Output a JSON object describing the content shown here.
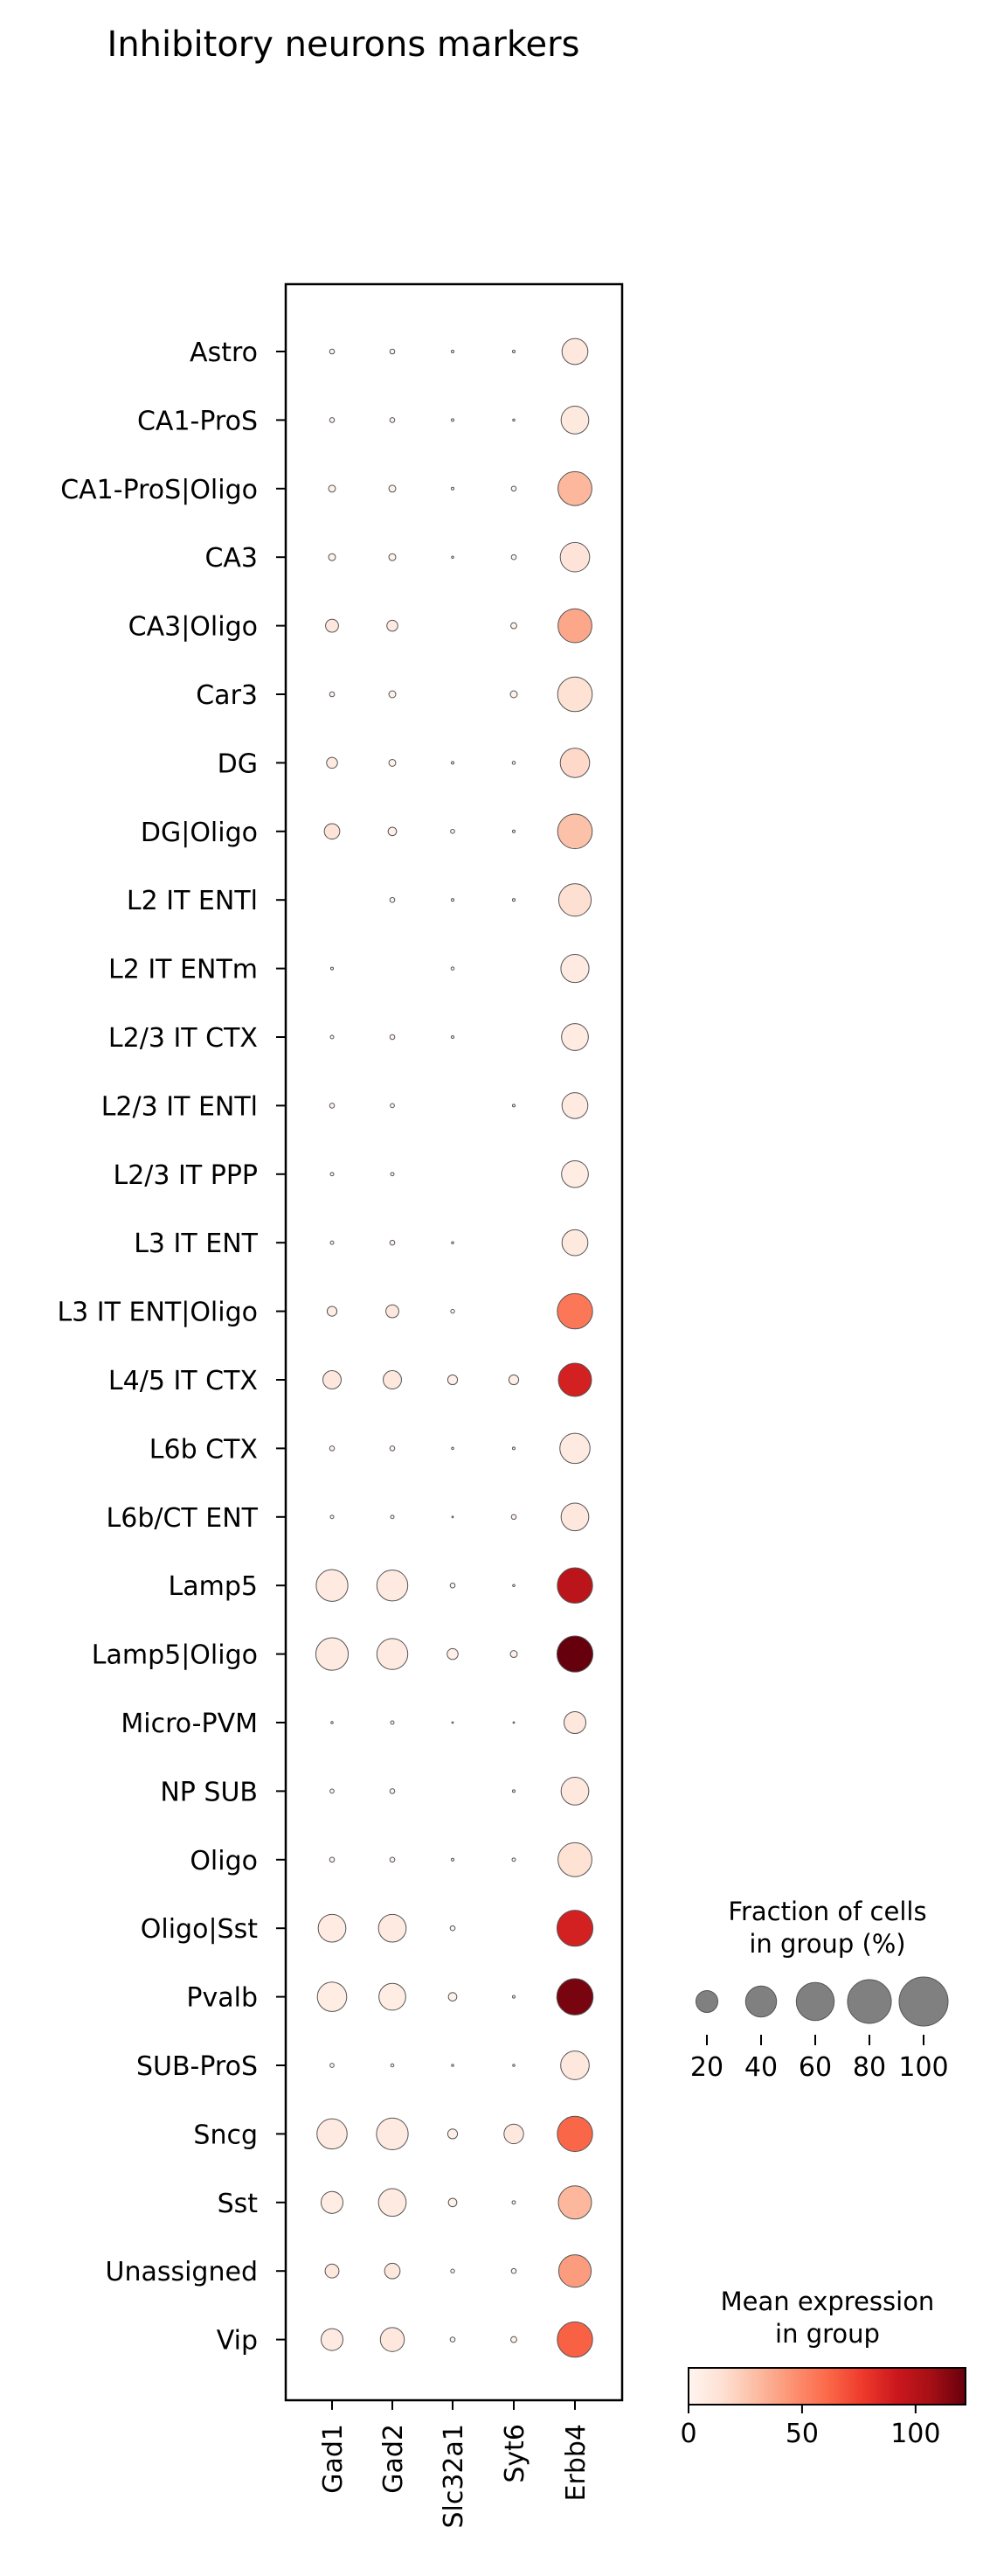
{
  "chart_data": {
    "type": "dotplot",
    "title": "Inhibitory neurons markers",
    "genes": [
      "Gad1",
      "Gad2",
      "Slc32a1",
      "Syt6",
      "Erbb4"
    ],
    "groups": [
      "Astro",
      "CA1-ProS",
      "CA1-ProS|Oligo",
      "CA3",
      "CA3|Oligo",
      "Car3",
      "DG",
      "DG|Oligo",
      "L2 IT ENTl",
      "L2 IT ENTm",
      "L2/3 IT CTX",
      "L2/3 IT ENTl",
      "L2/3 IT PPP",
      "L3 IT ENT",
      "L3 IT ENT|Oligo",
      "L4/5 IT CTX",
      "L6b CTX",
      "L6b/CT ENT",
      "Lamp5",
      "Lamp5|Oligo",
      "Micro-PVM",
      "NP SUB",
      "Oligo",
      "Oligo|Sst",
      "Pvalb",
      "SUB-ProS",
      "Sncg",
      "Sst",
      "Unassigned",
      "Vip"
    ],
    "fraction_pct": [
      [
        1,
        1,
        0.3,
        0.3,
        28
      ],
      [
        1,
        1,
        0.3,
        0.2,
        32
      ],
      [
        2,
        2,
        0.3,
        1,
        48
      ],
      [
        2,
        2,
        0.2,
        1,
        36
      ],
      [
        7,
        5,
        0,
        1.5,
        48
      ],
      [
        1,
        2,
        0,
        2,
        50
      ],
      [
        5,
        2,
        0.3,
        0.4,
        36
      ],
      [
        10,
        3,
        0.7,
        0.3,
        50
      ],
      [
        0,
        1,
        0.3,
        0.3,
        44
      ],
      [
        0.3,
        0,
        0.4,
        0,
        33
      ],
      [
        0.5,
        1,
        0.3,
        0,
        30
      ],
      [
        1,
        0.7,
        0,
        0.3,
        28
      ],
      [
        0.5,
        0.5,
        0,
        0,
        30
      ],
      [
        0.5,
        1,
        0.2,
        0,
        28
      ],
      [
        4,
        7,
        0.6,
        0,
        52
      ],
      [
        14,
        14,
        4,
        4,
        46
      ],
      [
        1,
        1,
        0.2,
        0.3,
        38
      ],
      [
        0.5,
        0.5,
        0.1,
        1,
        32
      ],
      [
        42,
        40,
        1,
        0.2,
        52
      ],
      [
        44,
        40,
        5,
        2,
        54
      ],
      [
        0.2,
        0.5,
        0.1,
        0.1,
        20
      ],
      [
        0.7,
        1,
        0,
        0.3,
        32
      ],
      [
        1,
        1,
        0.3,
        0.5,
        48
      ],
      [
        32,
        32,
        1,
        0,
        54
      ],
      [
        36,
        30,
        3,
        0.3,
        55
      ],
      [
        0.7,
        0.4,
        0.2,
        0.2,
        34
      ],
      [
        38,
        42,
        4,
        16,
        52
      ],
      [
        20,
        32,
        3,
        0.5,
        46
      ],
      [
        8,
        10,
        0.6,
        1,
        44
      ],
      [
        20,
        24,
        1,
        1.5,
        52
      ]
    ],
    "mean_expression": [
      [
        2,
        2,
        0,
        0,
        10
      ],
      [
        2,
        2,
        0,
        0,
        9
      ],
      [
        3,
        3,
        0,
        0,
        32
      ],
      [
        2,
        2,
        0,
        0,
        12
      ],
      [
        10,
        8,
        0,
        2,
        38
      ],
      [
        2,
        3,
        0,
        3,
        14
      ],
      [
        8,
        3,
        0,
        1,
        18
      ],
      [
        12,
        4,
        1,
        0,
        28
      ],
      [
        0,
        2,
        0,
        0,
        15
      ],
      [
        0,
        0,
        0,
        0,
        8
      ],
      [
        1,
        2,
        0,
        0,
        7
      ],
      [
        2,
        1,
        0,
        0,
        8
      ],
      [
        1,
        1,
        0,
        0,
        6
      ],
      [
        1,
        2,
        0,
        0,
        9
      ],
      [
        6,
        10,
        1,
        0,
        56
      ],
      [
        10,
        10,
        4,
        5,
        88
      ],
      [
        2,
        2,
        0,
        0,
        8
      ],
      [
        1,
        1,
        0,
        2,
        10
      ],
      [
        8,
        8,
        1,
        0,
        98
      ],
      [
        8,
        8,
        4,
        3,
        125
      ],
      [
        0,
        1,
        0,
        0,
        10
      ],
      [
        1,
        2,
        0,
        0,
        10
      ],
      [
        2,
        2,
        0,
        0,
        14
      ],
      [
        7,
        8,
        1,
        0,
        88
      ],
      [
        6,
        6,
        3,
        0,
        118
      ],
      [
        1,
        1,
        0,
        0,
        10
      ],
      [
        8,
        8,
        4,
        10,
        62
      ],
      [
        6,
        8,
        3,
        0,
        32
      ],
      [
        10,
        10,
        1,
        1,
        42
      ],
      [
        8,
        10,
        1,
        2,
        64
      ]
    ],
    "size_legend": {
      "title": "Fraction of cells\nin group (%)",
      "values": [
        20,
        40,
        60,
        80,
        100
      ]
    },
    "color_legend": {
      "title": "Mean expression\nin group",
      "ticks": [
        0,
        50,
        100
      ],
      "vmin": 0,
      "vmax": 122,
      "colormap": "Reds",
      "colors": [
        "#fff5f0",
        "#fee0d2",
        "#fcbba1",
        "#fc9272",
        "#fb6a4a",
        "#ef3b2c",
        "#cb181d",
        "#a50f15",
        "#67000d"
      ]
    },
    "dot_edge_color": "#555555",
    "grid": false
  }
}
